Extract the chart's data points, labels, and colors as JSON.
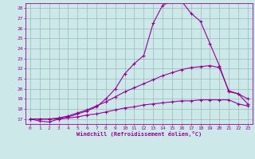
{
  "xlabel": "Windchill (Refroidissement éolien,°C)",
  "bg_color": "#cce8e8",
  "line_color": "#990099",
  "grid_color": "#99bbbb",
  "xmin": 0,
  "xmax": 23,
  "ymin": 17,
  "ymax": 28,
  "line1_x": [
    0,
    1,
    2,
    3,
    4,
    5,
    6,
    7,
    8,
    9,
    10,
    11,
    12,
    13,
    14,
    15,
    16,
    17,
    18,
    19,
    20,
    21,
    22,
    23
  ],
  "line1_y": [
    17.0,
    16.8,
    16.7,
    17.0,
    17.2,
    17.5,
    17.8,
    18.2,
    19.0,
    20.0,
    21.5,
    22.5,
    23.3,
    26.5,
    28.3,
    28.7,
    28.7,
    27.5,
    26.7,
    24.5,
    22.3,
    19.7,
    19.5,
    18.5
  ],
  "line2_x": [
    0,
    1,
    2,
    3,
    4,
    5,
    6,
    7,
    8,
    9,
    10,
    11,
    12,
    13,
    14,
    15,
    16,
    17,
    18,
    19,
    20,
    21,
    22,
    23
  ],
  "line2_y": [
    17.0,
    17.0,
    17.0,
    17.1,
    17.3,
    17.6,
    17.9,
    18.3,
    18.7,
    19.2,
    19.7,
    20.1,
    20.5,
    20.9,
    21.3,
    21.6,
    21.9,
    22.1,
    22.2,
    22.3,
    22.1,
    19.8,
    19.5,
    19.0
  ],
  "line3_x": [
    0,
    1,
    2,
    3,
    4,
    5,
    6,
    7,
    8,
    9,
    10,
    11,
    12,
    13,
    14,
    15,
    16,
    17,
    18,
    19,
    20,
    21,
    22,
    23
  ],
  "line3_y": [
    17.0,
    17.0,
    17.0,
    17.0,
    17.1,
    17.2,
    17.4,
    17.5,
    17.7,
    17.9,
    18.1,
    18.2,
    18.4,
    18.5,
    18.6,
    18.7,
    18.8,
    18.8,
    18.9,
    18.9,
    18.9,
    18.9,
    18.5,
    18.3
  ]
}
